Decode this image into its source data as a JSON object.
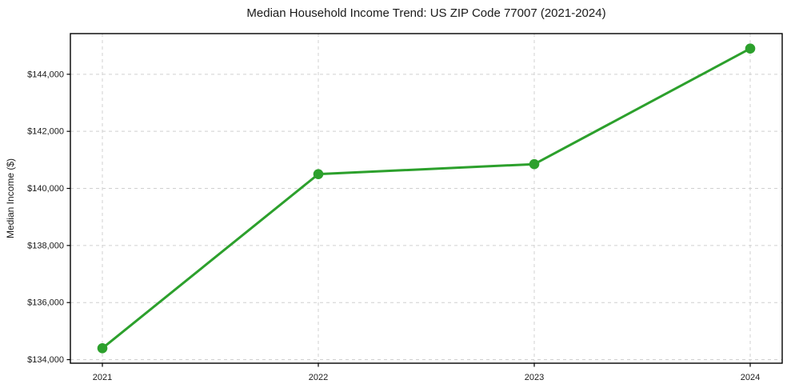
{
  "chart_data": {
    "type": "line",
    "title": "Median Household Income Trend: US ZIP Code 77007 (2021-2024)",
    "xlabel": "",
    "ylabel": "Median Income ($)",
    "x": [
      "2021",
      "2022",
      "2023",
      "2024"
    ],
    "series": [
      {
        "name": "Median Household Income",
        "values": [
          134400,
          140500,
          140850,
          144900
        ]
      }
    ],
    "ylim": [
      133875,
      145425
    ],
    "y_ticks": [
      134000,
      136000,
      138000,
      140000,
      142000,
      144000
    ],
    "y_tick_prefix": "$",
    "grid": "dashed, horizontal and vertical",
    "legend_position": "none",
    "colors": {
      "line": "#2ca02c",
      "marker": "#2ca02c",
      "gridline": "#d0d0d0",
      "spine": "#000000",
      "background": "#ffffff",
      "text": "#1a1a1a"
    }
  }
}
